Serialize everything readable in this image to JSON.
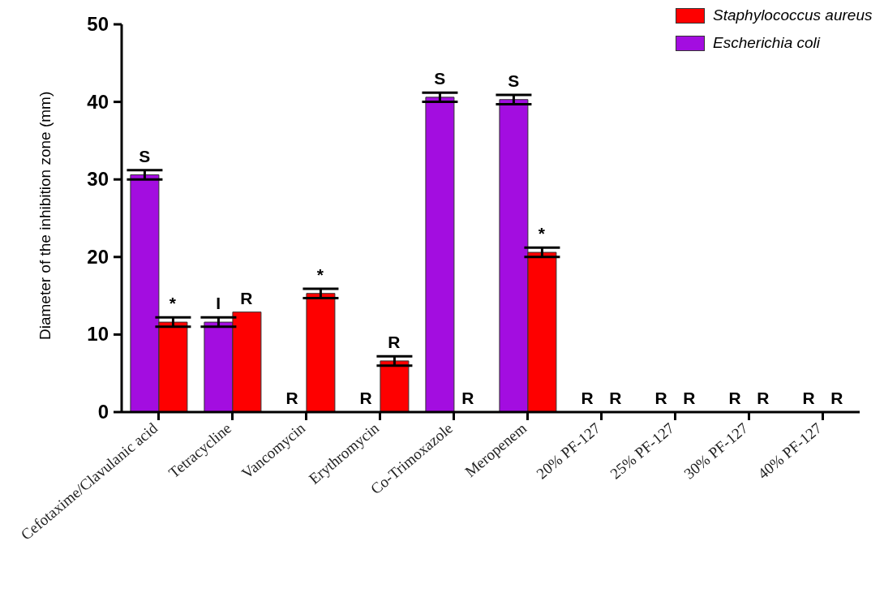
{
  "chart_data": {
    "type": "bar",
    "ylabel": "Diameter of the inhibition zone (mm)",
    "categories": [
      "Cefotaxime/Clavulanic acid",
      "Tetracycline",
      "Vancomycin",
      "Erythromycin",
      "Co-Trimoxazole",
      "Meropenem",
      "20% PF-127",
      "25% PF-127",
      "30% PF-127",
      "40% PF-127"
    ],
    "series": [
      {
        "name": "Escherichia coli",
        "color": "#a30de0",
        "values": [
          30.6,
          11.6,
          0,
          0,
          40.6,
          40.3,
          0,
          0,
          0,
          0
        ],
        "errors": [
          0.6,
          0.6,
          null,
          null,
          0.6,
          0.6,
          null,
          null,
          null,
          null
        ],
        "value_labels": [
          "S",
          "I",
          "R",
          "R",
          "S",
          "S",
          "R",
          "R",
          "R",
          "R"
        ]
      },
      {
        "name": "Staphylococcus aureus",
        "color": "#fe0000",
        "values": [
          11.6,
          12.9,
          15.3,
          6.6,
          0,
          20.6,
          0,
          0,
          0,
          0
        ],
        "errors": [
          0.6,
          null,
          0.6,
          0.6,
          null,
          0.6,
          null,
          null,
          null,
          null
        ],
        "value_labels": [
          "*",
          "R",
          "*",
          "R",
          "R",
          "*",
          "R",
          "R",
          "R",
          "R"
        ]
      }
    ],
    "ylim": [
      0,
      50
    ],
    "yticks": [
      0,
      10,
      20,
      30,
      40,
      50
    ],
    "grid": false,
    "legend": "top right"
  }
}
